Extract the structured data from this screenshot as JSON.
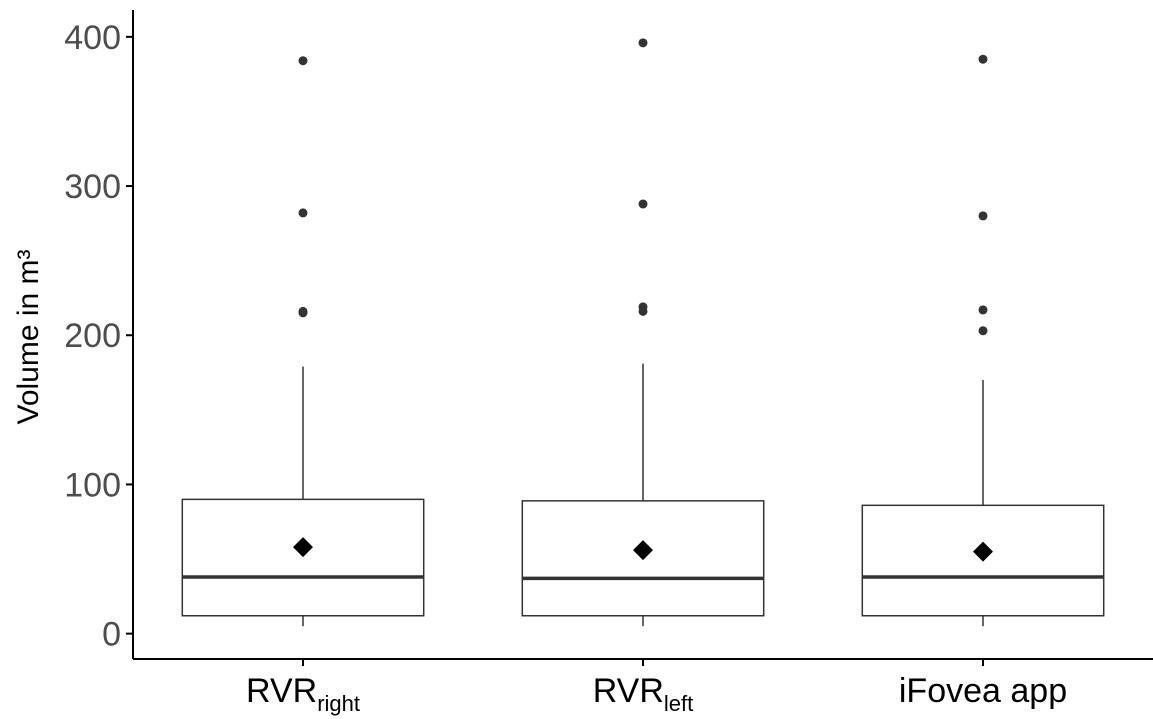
{
  "chart_data": {
    "type": "boxplot",
    "ylabel": "Volume in m³",
    "ylim": [
      -17,
      418
    ],
    "yticks": [
      0,
      100,
      200,
      300,
      400
    ],
    "grid": false,
    "legend": "none",
    "categories": [
      {
        "base": "RVR",
        "sub": "right"
      },
      {
        "base": "RVR",
        "sub": "left"
      },
      {
        "base": "iFovea app",
        "sub": ""
      }
    ],
    "boxes": [
      {
        "whisker_low": 5,
        "q1": 12,
        "median": 38,
        "q3": 90,
        "whisker_high": 179,
        "mean": 58,
        "outliers": [
          215,
          216,
          282,
          384
        ]
      },
      {
        "whisker_low": 5,
        "q1": 12,
        "median": 37,
        "q3": 89,
        "whisker_high": 181,
        "mean": 56,
        "outliers": [
          216,
          219,
          288,
          396
        ]
      },
      {
        "whisker_low": 5,
        "q1": 12,
        "median": 38,
        "q3": 86,
        "whisker_high": 170,
        "mean": 55,
        "outliers": [
          203,
          217,
          280,
          385
        ]
      }
    ],
    "colors": {
      "box_fill": "#ffffff",
      "box_stroke": "#333333",
      "point": "#333333",
      "mean": "#000000",
      "axis": "#000000",
      "tick_text": "#4d4d4d"
    }
  }
}
